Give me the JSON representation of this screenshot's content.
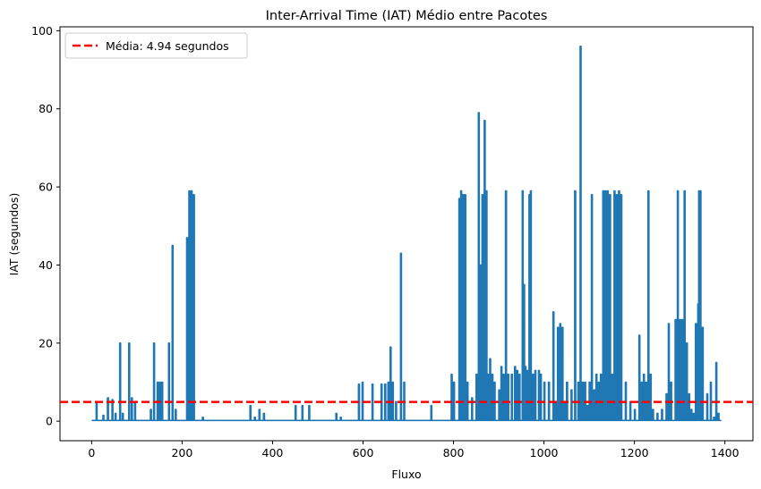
{
  "chart_data": {
    "type": "line",
    "title": "Inter-Arrival Time (IAT) Médio entre Pacotes",
    "xlabel": "Fluxo",
    "ylabel": "IAT (segundos)",
    "xlim": [
      -70,
      1462
    ],
    "ylim": [
      -5,
      101
    ],
    "xticks": [
      0,
      200,
      400,
      600,
      800,
      1000,
      1200,
      1400
    ],
    "yticks": [
      0,
      20,
      40,
      60,
      80,
      100
    ],
    "grid": false,
    "legend_position": "top-left",
    "line_color": "#1f77b4",
    "mean_line": {
      "value": 4.94,
      "label": "Média: 4.94 segundos",
      "color": "#ff0000",
      "style": "dashed"
    },
    "series": [
      {
        "color": "#1f77b4",
        "spikes": [
          [
            10,
            5
          ],
          [
            25,
            1.5
          ],
          [
            35,
            6
          ],
          [
            45,
            5.5
          ],
          [
            52,
            2
          ],
          [
            62,
            20
          ],
          [
            68,
            2
          ],
          [
            82,
            20
          ],
          [
            88,
            6
          ],
          [
            95,
            5
          ],
          [
            130,
            3
          ],
          [
            137,
            20
          ],
          [
            145,
            10
          ],
          [
            150,
            10
          ],
          [
            155,
            10
          ],
          [
            170,
            20
          ],
          [
            178,
            45
          ],
          [
            185,
            3
          ],
          [
            210,
            47
          ],
          [
            215,
            59
          ],
          [
            220,
            59
          ],
          [
            225,
            58
          ],
          [
            245,
            1
          ],
          [
            350,
            4
          ],
          [
            360,
            1
          ],
          [
            370,
            3
          ],
          [
            380,
            2
          ],
          [
            450,
            4
          ],
          [
            465,
            4
          ],
          [
            480,
            4
          ],
          [
            540,
            2
          ],
          [
            550,
            1
          ],
          [
            590,
            9.5
          ],
          [
            598,
            10
          ],
          [
            620,
            9.5
          ],
          [
            640,
            9.5
          ],
          [
            648,
            9.5
          ],
          [
            655,
            10
          ],
          [
            660,
            19
          ],
          [
            665,
            10
          ],
          [
            672,
            5
          ],
          [
            683,
            43
          ],
          [
            690,
            10
          ],
          [
            750,
            4
          ],
          [
            795,
            12
          ],
          [
            800,
            10
          ],
          [
            812,
            57
          ],
          [
            816,
            59
          ],
          [
            820,
            58
          ],
          [
            825,
            58
          ],
          [
            830,
            10
          ],
          [
            840,
            6
          ],
          [
            850,
            12
          ],
          [
            855,
            79
          ],
          [
            860,
            40
          ],
          [
            863,
            58
          ],
          [
            868,
            77
          ],
          [
            872,
            59
          ],
          [
            876,
            12
          ],
          [
            880,
            16
          ],
          [
            885,
            12
          ],
          [
            890,
            10
          ],
          [
            900,
            8
          ],
          [
            905,
            14
          ],
          [
            910,
            12
          ],
          [
            915,
            59
          ],
          [
            920,
            12
          ],
          [
            928,
            12
          ],
          [
            935,
            14
          ],
          [
            940,
            13
          ],
          [
            945,
            12
          ],
          [
            952,
            59
          ],
          [
            955,
            35
          ],
          [
            958,
            14
          ],
          [
            962,
            13
          ],
          [
            967,
            58
          ],
          [
            970,
            59
          ],
          [
            975,
            12
          ],
          [
            980,
            13
          ],
          [
            988,
            13
          ],
          [
            992,
            12
          ],
          [
            1000,
            10
          ],
          [
            1010,
            10
          ],
          [
            1020,
            28
          ],
          [
            1025,
            5
          ],
          [
            1030,
            24
          ],
          [
            1035,
            25
          ],
          [
            1040,
            24
          ],
          [
            1045,
            5
          ],
          [
            1050,
            10
          ],
          [
            1060,
            8
          ],
          [
            1068,
            59
          ],
          [
            1075,
            10
          ],
          [
            1080,
            96
          ],
          [
            1085,
            10
          ],
          [
            1090,
            10
          ],
          [
            1095,
            4
          ],
          [
            1100,
            10
          ],
          [
            1105,
            58
          ],
          [
            1110,
            8
          ],
          [
            1115,
            12
          ],
          [
            1120,
            10
          ],
          [
            1125,
            12
          ],
          [
            1130,
            59
          ],
          [
            1135,
            59
          ],
          [
            1140,
            59
          ],
          [
            1145,
            58
          ],
          [
            1150,
            12
          ],
          [
            1155,
            59
          ],
          [
            1160,
            58
          ],
          [
            1165,
            59
          ],
          [
            1170,
            58
          ],
          [
            1180,
            10
          ],
          [
            1190,
            5
          ],
          [
            1200,
            3
          ],
          [
            1210,
            22
          ],
          [
            1215,
            10
          ],
          [
            1220,
            12
          ],
          [
            1225,
            10
          ],
          [
            1230,
            59
          ],
          [
            1235,
            12
          ],
          [
            1240,
            3
          ],
          [
            1250,
            2
          ],
          [
            1260,
            3
          ],
          [
            1270,
            7
          ],
          [
            1275,
            25
          ],
          [
            1280,
            10
          ],
          [
            1290,
            26
          ],
          [
            1295,
            59
          ],
          [
            1300,
            26
          ],
          [
            1305,
            26
          ],
          [
            1310,
            59
          ],
          [
            1315,
            20
          ],
          [
            1320,
            7
          ],
          [
            1325,
            3
          ],
          [
            1330,
            2
          ],
          [
            1335,
            25
          ],
          [
            1340,
            30
          ],
          [
            1342,
            59
          ],
          [
            1345,
            59
          ],
          [
            1350,
            24
          ],
          [
            1360,
            7
          ],
          [
            1368,
            10
          ],
          [
            1375,
            1
          ],
          [
            1380,
            15
          ],
          [
            1385,
            2
          ]
        ]
      }
    ]
  }
}
